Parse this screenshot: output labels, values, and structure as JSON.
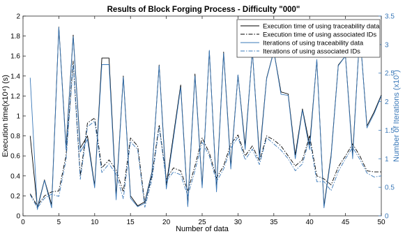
{
  "chart_data": {
    "type": "line",
    "title": "Results of Block Forging Process - Difficulty \"000\"",
    "xlabel": "Number of data",
    "ylabel_left": "Execution time(x10⁴) (s)",
    "ylabel_right": "Number of Iterations (x10⁷)",
    "xlim": [
      0,
      50
    ],
    "ylim_left": [
      0,
      2
    ],
    "ylim_right": [
      0,
      3.5
    ],
    "xticks": [
      0,
      5,
      10,
      15,
      20,
      25,
      30,
      35,
      40,
      45,
      50
    ],
    "yticks_left": [
      0,
      0.2,
      0.4,
      0.6,
      0.8,
      1,
      1.2,
      1.4,
      1.6,
      1.8,
      2
    ],
    "yticks_right": [
      0,
      0.5,
      1,
      1.5,
      2,
      2.5,
      3,
      3.5
    ],
    "legend_position": "top-right",
    "grid": false,
    "x": [
      1,
      2,
      3,
      4,
      5,
      6,
      7,
      8,
      9,
      10,
      11,
      12,
      13,
      14,
      15,
      16,
      17,
      18,
      19,
      20,
      21,
      22,
      23,
      24,
      25,
      26,
      27,
      28,
      29,
      30,
      31,
      32,
      33,
      34,
      35,
      36,
      37,
      38,
      39,
      40,
      41,
      42,
      43,
      44,
      45,
      46,
      47,
      48,
      49,
      50
    ],
    "series": [
      {
        "name": "Execution time of using traceability data",
        "axis": "left",
        "color": "#000000",
        "dash": "solid",
        "values": [
          0.8,
          0.08,
          0.36,
          0.11,
          1.89,
          0.69,
          1.81,
          0.68,
          0.8,
          0.3,
          1.58,
          1.58,
          0.2,
          1.4,
          0.2,
          0.1,
          0.14,
          0.44,
          1.51,
          0.31,
          0.81,
          1.31,
          0.11,
          1.42,
          0.3,
          1.65,
          0.27,
          1.64,
          0.5,
          1.41,
          0.7,
          1.65,
          0.6,
          1.38,
          1.65,
          1.24,
          1.22,
          0.61,
          1.07,
          0.71,
          1.56,
          0.1,
          0.61,
          1.51,
          1.6,
          0.61,
          1.84,
          0.9,
          1.04,
          1.21
        ]
      },
      {
        "name": "Execution time of using associated IDs",
        "axis": "left",
        "color": "#000000",
        "dash": "dashdot",
        "values": [
          0.22,
          0.1,
          0.2,
          0.24,
          0.25,
          0.6,
          1.55,
          0.4,
          0.93,
          0.98,
          0.48,
          0.56,
          0.46,
          0.24,
          0.78,
          0.7,
          0.12,
          0.4,
          0.91,
          0.37,
          0.48,
          0.45,
          0.25,
          0.5,
          0.78,
          0.63,
          0.38,
          0.5,
          0.72,
          0.81,
          0.6,
          0.7,
          0.55,
          0.8,
          0.76,
          0.7,
          0.6,
          0.5,
          0.56,
          0.8,
          0.4,
          0.37,
          0.31,
          0.49,
          0.6,
          0.72,
          0.6,
          0.45,
          0.44,
          0.44
        ]
      },
      {
        "name": "Iterations of using traceability data",
        "axis": "right",
        "color": "#3a78b8",
        "dash": "solid",
        "values": [
          2.42,
          0.11,
          0.62,
          0.14,
          3.3,
          1.16,
          3.14,
          1.12,
          1.34,
          0.49,
          2.65,
          2.65,
          0.28,
          2.43,
          0.31,
          0.16,
          0.22,
          0.75,
          2.63,
          0.47,
          1.36,
          2.25,
          0.16,
          2.45,
          0.49,
          2.9,
          0.42,
          2.85,
          0.82,
          2.47,
          1.16,
          2.9,
          0.98,
          2.4,
          2.88,
          2.13,
          2.11,
          1.0,
          1.85,
          1.16,
          2.74,
          0.14,
          1.03,
          2.63,
          2.8,
          1.0,
          3.24,
          1.54,
          1.79,
          2.1
        ]
      },
      {
        "name": "Iterations of using associated IDs",
        "axis": "right",
        "color": "#3a78b8",
        "dash": "dashdot",
        "values": [
          0.37,
          0.14,
          0.31,
          0.38,
          0.34,
          0.98,
          2.65,
          0.64,
          1.56,
          1.66,
          0.76,
          0.91,
          0.73,
          0.3,
          1.3,
          1.16,
          0.15,
          0.64,
          1.55,
          0.61,
          0.77,
          0.72,
          0.35,
          0.79,
          1.29,
          1.05,
          0.6,
          0.82,
          1.19,
          1.38,
          0.98,
          1.17,
          0.9,
          1.37,
          1.26,
          1.15,
          1.0,
          0.79,
          0.91,
          1.36,
          0.6,
          0.6,
          0.44,
          0.78,
          1.0,
          1.2,
          0.99,
          0.75,
          0.68,
          0.7
        ]
      }
    ]
  }
}
